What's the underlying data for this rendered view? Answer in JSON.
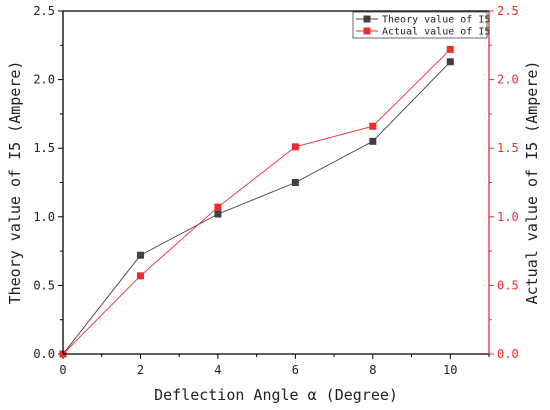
{
  "chart_data": {
    "type": "line",
    "x": [
      0,
      2,
      4,
      6,
      8,
      10
    ],
    "xlim": [
      0,
      11
    ],
    "ylim": [
      0,
      2.5
    ],
    "y2lim": [
      0,
      2.5
    ],
    "xticks": [
      "0",
      "2",
      "4",
      "6",
      "8",
      "10"
    ],
    "yticks": [
      "0.0",
      "0.5",
      "1.0",
      "1.5",
      "2.0",
      "2.5"
    ],
    "xlabel": "Deflection Angle α (Degree)",
    "ylabel": "Theory value of I5 (Ampere)",
    "y2label": "Actual value of I5 (Ampere)",
    "legend_position": "top-right",
    "series": [
      {
        "name": "Theory value of I5",
        "axis": "left",
        "color": "#404040",
        "marker": "square",
        "values": [
          0.0,
          0.72,
          1.02,
          1.25,
          1.55,
          2.13
        ]
      },
      {
        "name": "Actual value of I5",
        "axis": "right",
        "color": "#ee2c2c",
        "marker": "square",
        "values": [
          0.0,
          0.57,
          1.07,
          1.51,
          1.66,
          2.22
        ]
      }
    ],
    "axis_colors": {
      "left": "#000000",
      "right": "#ee2c2c"
    }
  }
}
